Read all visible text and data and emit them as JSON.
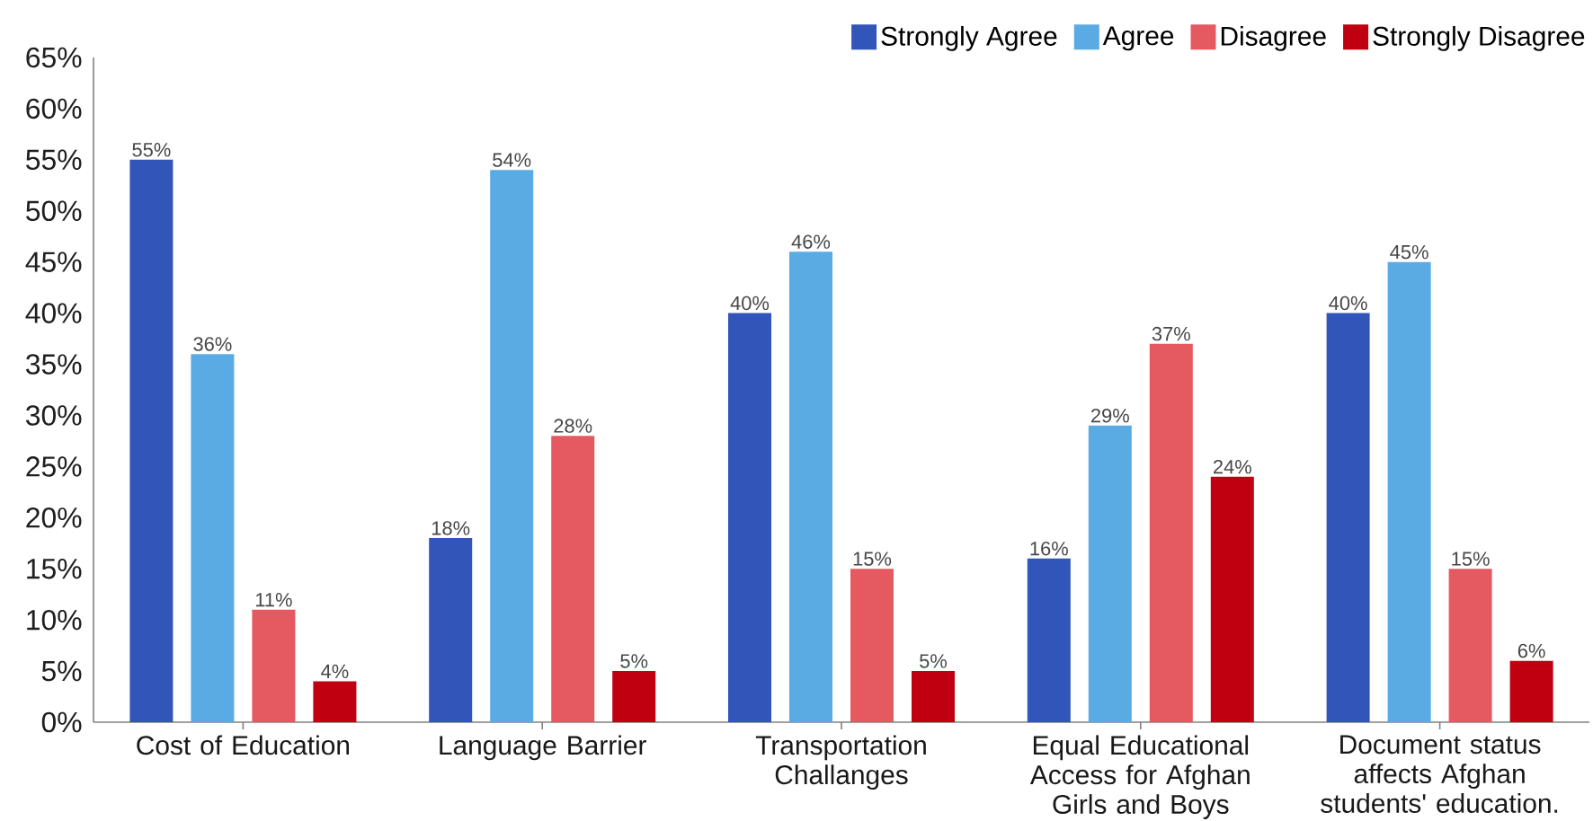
{
  "chart_data": {
    "type": "bar",
    "categories": [
      "Cost of Education",
      "Language Barrier",
      "Transportation Challanges",
      "Equal Educational Access for Afghan Girls and Boys",
      "Document status affects Afghan students' education."
    ],
    "series": [
      {
        "name": "Strongly Agree",
        "color": "#3155b8",
        "values": [
          55,
          18,
          40,
          16,
          40
        ],
        "value_labels": [
          "55%",
          "18%",
          "40%",
          "16%",
          "40%"
        ]
      },
      {
        "name": "Agree",
        "color": "#5aabe3",
        "values": [
          36,
          54,
          46,
          29,
          45
        ],
        "value_labels": [
          "36%",
          "54%",
          "46%",
          "29%",
          "45%"
        ]
      },
      {
        "name": "Disagree",
        "color": "#e55a60",
        "values": [
          11,
          28,
          15,
          37,
          15
        ],
        "value_labels": [
          "11%",
          "28%",
          "15%",
          "37%",
          "15%"
        ]
      },
      {
        "name": "Strongly Disagree",
        "color": "#c00010",
        "values": [
          4,
          5,
          5,
          24,
          6
        ],
        "value_labels": [
          "4%",
          "5%",
          "5%",
          "24%",
          "6%"
        ]
      }
    ],
    "ylim": [
      0,
      65
    ],
    "yticks": [
      {
        "value": 0,
        "label": "0%"
      },
      {
        "value": 5,
        "label": "5%"
      },
      {
        "value": 10,
        "label": "10%"
      },
      {
        "value": 15,
        "label": "15%"
      },
      {
        "value": 20,
        "label": "20%"
      },
      {
        "value": 25,
        "label": "25%"
      },
      {
        "value": 30,
        "label": "30%"
      },
      {
        "value": 35,
        "label": "35%"
      },
      {
        "value": 40,
        "label": "40%"
      },
      {
        "value": 45,
        "label": "45%"
      },
      {
        "value": 50,
        "label": "50%"
      },
      {
        "value": 55,
        "label": "55%"
      },
      {
        "value": 60,
        "label": "60%"
      },
      {
        "value": 65,
        "label": "65%"
      }
    ],
    "legend": "top right"
  }
}
